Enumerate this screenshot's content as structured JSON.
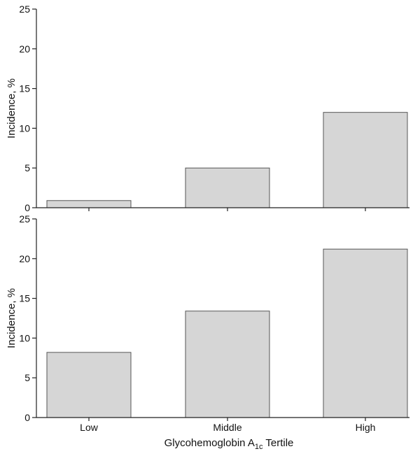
{
  "colors": {
    "bar_fill": "#d6d6d6",
    "bar_stroke": "#555555",
    "axis": "#222222"
  },
  "chart_data": [
    {
      "type": "bar",
      "categories": [
        "Low",
        "Middle",
        "High"
      ],
      "values": [
        0.9,
        5.0,
        12.0
      ],
      "ylabel": "Incidence, %",
      "xlabel": "",
      "ylim": [
        0,
        25
      ],
      "yticks": [
        0,
        5,
        10,
        15,
        20,
        25
      ],
      "show_category_labels": false,
      "grid": false
    },
    {
      "type": "bar",
      "categories": [
        "Low",
        "Middle",
        "High"
      ],
      "values": [
        8.2,
        13.4,
        21.2
      ],
      "ylabel": "Incidence, %",
      "xlabel_main": "Glycohemoglobin A",
      "xlabel_sub": "1c",
      "xlabel_tail": " Tertile",
      "ylim": [
        0,
        25
      ],
      "yticks": [
        0,
        5,
        10,
        15,
        20,
        25
      ],
      "show_category_labels": true,
      "grid": false
    }
  ]
}
